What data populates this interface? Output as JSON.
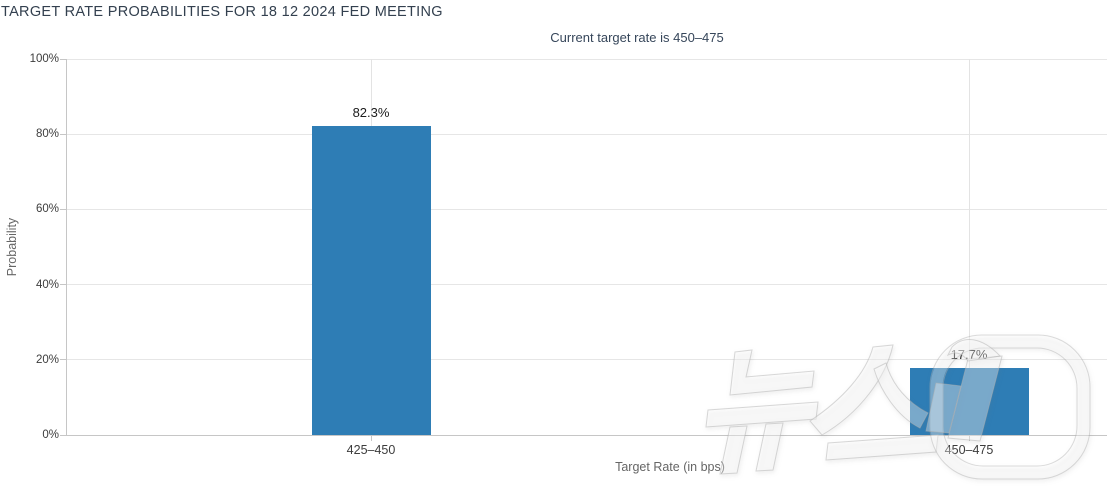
{
  "chart_data": {
    "type": "bar",
    "title": "TARGET RATE PROBABILITIES FOR 18 12 2024 FED MEETING",
    "subtitle": "Current target rate is 450–475",
    "categories": [
      "425–450",
      "450–475"
    ],
    "values": [
      82.3,
      17.7
    ],
    "value_labels": [
      "82.3%",
      "17.7%"
    ],
    "xlabel": "Target Rate (in bps)",
    "ylabel": "Probability",
    "ylim": [
      0,
      100
    ],
    "ytick_values": [
      0,
      20,
      40,
      60,
      80,
      100
    ],
    "ytick_labels": [
      "0%",
      "20%",
      "40%",
      "60%",
      "80%",
      "100%"
    ],
    "grid": true,
    "legend": false,
    "bar_color": "#2e7db5",
    "current_rate_category": "450–475"
  },
  "watermark": {
    "name": "news1-logo",
    "text": "뉴스1",
    "color": "#ffffff"
  },
  "colors": {
    "bar": "#2e7db5",
    "title_text": "#33404f",
    "subtitle_text": "#36465a",
    "axis_text": "#3c3c3c",
    "axis_title_text": "#666666",
    "gridline": "#e6e6e6",
    "axis_line": "#c6c6c6",
    "background": "#ffffff"
  }
}
